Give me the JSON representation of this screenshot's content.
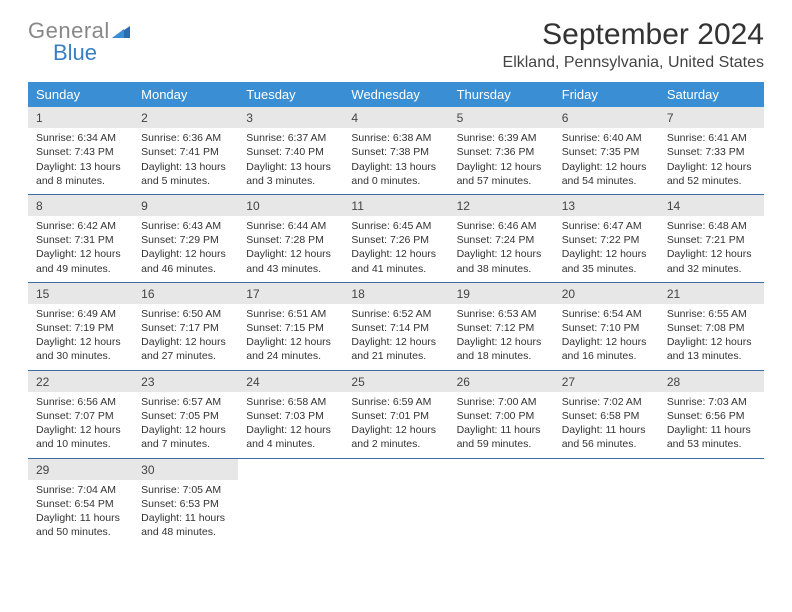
{
  "brand": {
    "part1": "General",
    "part2": "Blue"
  },
  "title": "September 2024",
  "location": "Elkland, Pennsylvania, United States",
  "colors": {
    "header_bg": "#3a8fd4",
    "header_text": "#ffffff",
    "daynum_bg": "#e7e7e7",
    "row_border": "#3a6fa4",
    "brand_gray": "#888888",
    "brand_blue": "#3a7fc4",
    "body_text": "#333333"
  },
  "weekdays": [
    "Sunday",
    "Monday",
    "Tuesday",
    "Wednesday",
    "Thursday",
    "Friday",
    "Saturday"
  ],
  "weeks": [
    [
      {
        "n": "1",
        "sr": "Sunrise: 6:34 AM",
        "ss": "Sunset: 7:43 PM",
        "dl": "Daylight: 13 hours and 8 minutes."
      },
      {
        "n": "2",
        "sr": "Sunrise: 6:36 AM",
        "ss": "Sunset: 7:41 PM",
        "dl": "Daylight: 13 hours and 5 minutes."
      },
      {
        "n": "3",
        "sr": "Sunrise: 6:37 AM",
        "ss": "Sunset: 7:40 PM",
        "dl": "Daylight: 13 hours and 3 minutes."
      },
      {
        "n": "4",
        "sr": "Sunrise: 6:38 AM",
        "ss": "Sunset: 7:38 PM",
        "dl": "Daylight: 13 hours and 0 minutes."
      },
      {
        "n": "5",
        "sr": "Sunrise: 6:39 AM",
        "ss": "Sunset: 7:36 PM",
        "dl": "Daylight: 12 hours and 57 minutes."
      },
      {
        "n": "6",
        "sr": "Sunrise: 6:40 AM",
        "ss": "Sunset: 7:35 PM",
        "dl": "Daylight: 12 hours and 54 minutes."
      },
      {
        "n": "7",
        "sr": "Sunrise: 6:41 AM",
        "ss": "Sunset: 7:33 PM",
        "dl": "Daylight: 12 hours and 52 minutes."
      }
    ],
    [
      {
        "n": "8",
        "sr": "Sunrise: 6:42 AM",
        "ss": "Sunset: 7:31 PM",
        "dl": "Daylight: 12 hours and 49 minutes."
      },
      {
        "n": "9",
        "sr": "Sunrise: 6:43 AM",
        "ss": "Sunset: 7:29 PM",
        "dl": "Daylight: 12 hours and 46 minutes."
      },
      {
        "n": "10",
        "sr": "Sunrise: 6:44 AM",
        "ss": "Sunset: 7:28 PM",
        "dl": "Daylight: 12 hours and 43 minutes."
      },
      {
        "n": "11",
        "sr": "Sunrise: 6:45 AM",
        "ss": "Sunset: 7:26 PM",
        "dl": "Daylight: 12 hours and 41 minutes."
      },
      {
        "n": "12",
        "sr": "Sunrise: 6:46 AM",
        "ss": "Sunset: 7:24 PM",
        "dl": "Daylight: 12 hours and 38 minutes."
      },
      {
        "n": "13",
        "sr": "Sunrise: 6:47 AM",
        "ss": "Sunset: 7:22 PM",
        "dl": "Daylight: 12 hours and 35 minutes."
      },
      {
        "n": "14",
        "sr": "Sunrise: 6:48 AM",
        "ss": "Sunset: 7:21 PM",
        "dl": "Daylight: 12 hours and 32 minutes."
      }
    ],
    [
      {
        "n": "15",
        "sr": "Sunrise: 6:49 AM",
        "ss": "Sunset: 7:19 PM",
        "dl": "Daylight: 12 hours and 30 minutes."
      },
      {
        "n": "16",
        "sr": "Sunrise: 6:50 AM",
        "ss": "Sunset: 7:17 PM",
        "dl": "Daylight: 12 hours and 27 minutes."
      },
      {
        "n": "17",
        "sr": "Sunrise: 6:51 AM",
        "ss": "Sunset: 7:15 PM",
        "dl": "Daylight: 12 hours and 24 minutes."
      },
      {
        "n": "18",
        "sr": "Sunrise: 6:52 AM",
        "ss": "Sunset: 7:14 PM",
        "dl": "Daylight: 12 hours and 21 minutes."
      },
      {
        "n": "19",
        "sr": "Sunrise: 6:53 AM",
        "ss": "Sunset: 7:12 PM",
        "dl": "Daylight: 12 hours and 18 minutes."
      },
      {
        "n": "20",
        "sr": "Sunrise: 6:54 AM",
        "ss": "Sunset: 7:10 PM",
        "dl": "Daylight: 12 hours and 16 minutes."
      },
      {
        "n": "21",
        "sr": "Sunrise: 6:55 AM",
        "ss": "Sunset: 7:08 PM",
        "dl": "Daylight: 12 hours and 13 minutes."
      }
    ],
    [
      {
        "n": "22",
        "sr": "Sunrise: 6:56 AM",
        "ss": "Sunset: 7:07 PM",
        "dl": "Daylight: 12 hours and 10 minutes."
      },
      {
        "n": "23",
        "sr": "Sunrise: 6:57 AM",
        "ss": "Sunset: 7:05 PM",
        "dl": "Daylight: 12 hours and 7 minutes."
      },
      {
        "n": "24",
        "sr": "Sunrise: 6:58 AM",
        "ss": "Sunset: 7:03 PM",
        "dl": "Daylight: 12 hours and 4 minutes."
      },
      {
        "n": "25",
        "sr": "Sunrise: 6:59 AM",
        "ss": "Sunset: 7:01 PM",
        "dl": "Daylight: 12 hours and 2 minutes."
      },
      {
        "n": "26",
        "sr": "Sunrise: 7:00 AM",
        "ss": "Sunset: 7:00 PM",
        "dl": "Daylight: 11 hours and 59 minutes."
      },
      {
        "n": "27",
        "sr": "Sunrise: 7:02 AM",
        "ss": "Sunset: 6:58 PM",
        "dl": "Daylight: 11 hours and 56 minutes."
      },
      {
        "n": "28",
        "sr": "Sunrise: 7:03 AM",
        "ss": "Sunset: 6:56 PM",
        "dl": "Daylight: 11 hours and 53 minutes."
      }
    ],
    [
      {
        "n": "29",
        "sr": "Sunrise: 7:04 AM",
        "ss": "Sunset: 6:54 PM",
        "dl": "Daylight: 11 hours and 50 minutes."
      },
      {
        "n": "30",
        "sr": "Sunrise: 7:05 AM",
        "ss": "Sunset: 6:53 PM",
        "dl": "Daylight: 11 hours and 48 minutes."
      },
      null,
      null,
      null,
      null,
      null
    ]
  ]
}
